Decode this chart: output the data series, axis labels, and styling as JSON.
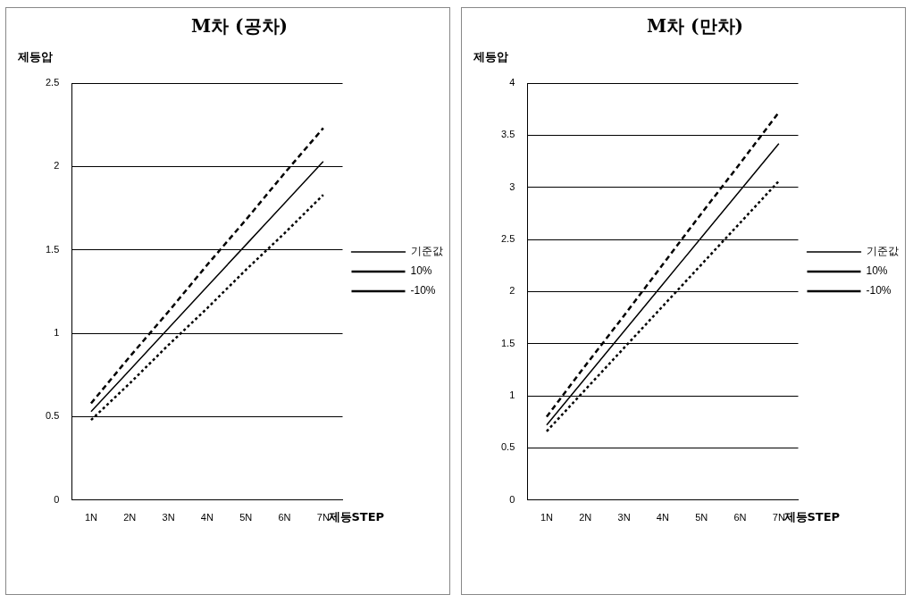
{
  "chart_data": [
    {
      "type": "line",
      "title": "M차 (공차)",
      "ylabel": "제등압",
      "xlabel": "제등STEP",
      "categories": [
        "1N",
        "2N",
        "3N",
        "4N",
        "5N",
        "6N",
        "7N"
      ],
      "series": [
        {
          "name": "기준값",
          "color": "#000000",
          "line_style": "solid",
          "values": [
            0.53,
            0.78,
            1.03,
            1.28,
            1.53,
            1.78,
            2.03
          ]
        },
        {
          "name": "10%",
          "color": "#000000",
          "line_style": "dashed",
          "values": [
            0.58,
            0.86,
            1.13,
            1.41,
            1.68,
            1.96,
            2.23
          ]
        },
        {
          "name": "-10%",
          "color": "#000000",
          "line_style": "dotted",
          "values": [
            0.48,
            0.7,
            0.93,
            1.15,
            1.38,
            1.6,
            1.83
          ]
        }
      ],
      "ylim": [
        0,
        2.5
      ],
      "yticks": [
        0,
        0.5,
        1,
        1.5,
        2,
        2.5
      ],
      "grid": "y",
      "legend": "right",
      "marker": "none"
    },
    {
      "type": "line",
      "title": "M차 (만차)",
      "ylabel": "제등압",
      "xlabel": "제등STEP",
      "categories": [
        "1N",
        "2N",
        "3N",
        "4N",
        "5N",
        "6N",
        "7N"
      ],
      "series": [
        {
          "name": "기준값",
          "color": "#000000",
          "line_style": "solid",
          "values": [
            0.72,
            1.17,
            1.62,
            2.07,
            2.52,
            2.97,
            3.42
          ]
        },
        {
          "name": "10%",
          "color": "#000000",
          "line_style": "dashed",
          "values": [
            0.8,
            1.29,
            1.77,
            2.26,
            2.75,
            3.23,
            3.72
          ]
        },
        {
          "name": "-10%",
          "color": "#000000",
          "line_style": "dotted",
          "values": [
            0.66,
            1.06,
            1.46,
            1.86,
            2.26,
            2.66,
            3.06
          ]
        }
      ],
      "ylim": [
        0,
        4
      ],
      "yticks": [
        0,
        0.5,
        1,
        1.5,
        2,
        2.5,
        3,
        3.5,
        4
      ],
      "grid": "y",
      "legend": "right",
      "marker": "none"
    }
  ]
}
